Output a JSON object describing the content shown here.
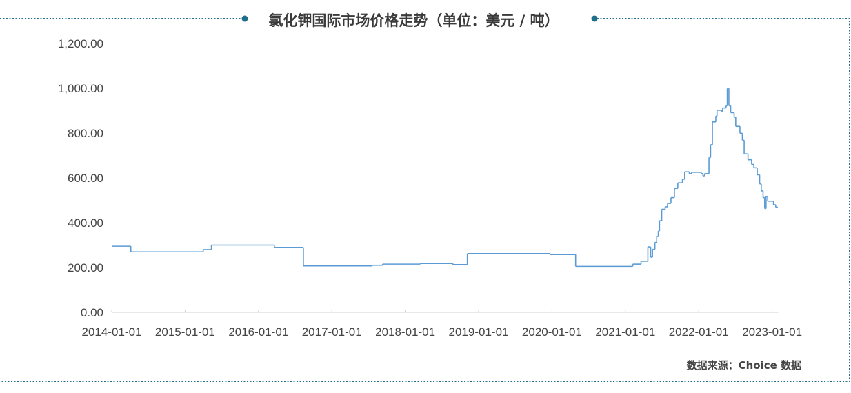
{
  "title": "氯化钾国际市场价格走势（单位：美元 / 吨）",
  "source": "数据来源：Choice 数据",
  "colors": {
    "line": "#5b9bd5",
    "frame": "#1f6f8b",
    "axis": "#d0d0d0",
    "text": "#444444"
  },
  "chart_data": {
    "type": "line",
    "title": "氯化钾国际市场价格走势（单位：美元 / 吨）",
    "xlabel": "",
    "ylabel": "",
    "ylim": [
      0,
      1200
    ],
    "yticks": [
      "0.00",
      "200.00",
      "400.00",
      "600.00",
      "800.00",
      "1,000.00",
      "1,200.00"
    ],
    "ytick_values": [
      0,
      200,
      400,
      600,
      800,
      1000,
      1200
    ],
    "xlim": [
      "2014-01-01",
      "2023-02-01"
    ],
    "xticks": [
      "2014-01-01",
      "2015-01-01",
      "2016-01-01",
      "2017-01-01",
      "2018-01-01",
      "2019-01-01",
      "2020-01-01",
      "2021-01-01",
      "2022-01-01",
      "2023-01-01"
    ],
    "grid": false,
    "step": true,
    "series": [
      {
        "points": [
          [
            "2014-01-01",
            295
          ],
          [
            "2014-04-06",
            270
          ],
          [
            "2015-04-01",
            280
          ],
          [
            "2015-05-12",
            300
          ],
          [
            "2016-03-20",
            290
          ],
          [
            "2016-08-12",
            207
          ],
          [
            "2017-07-20",
            210
          ],
          [
            "2017-09-10",
            215
          ],
          [
            "2018-03-17",
            218
          ],
          [
            "2018-08-26",
            213
          ],
          [
            "2018-11-06",
            262
          ],
          [
            "2019-12-23",
            258
          ],
          [
            "2020-04-28",
            205
          ],
          [
            "2021-02-07",
            215
          ],
          [
            "2021-03-20",
            228
          ],
          [
            "2021-04-23",
            292
          ],
          [
            "2021-05-07",
            246
          ],
          [
            "2021-05-16",
            281
          ],
          [
            "2021-05-28",
            312
          ],
          [
            "2021-06-06",
            338
          ],
          [
            "2021-06-14",
            363
          ],
          [
            "2021-06-20",
            409
          ],
          [
            "2021-07-01",
            460
          ],
          [
            "2021-07-18",
            471
          ],
          [
            "2021-07-30",
            486
          ],
          [
            "2021-08-16",
            512
          ],
          [
            "2021-09-02",
            553
          ],
          [
            "2021-09-19",
            578
          ],
          [
            "2021-10-12",
            594
          ],
          [
            "2021-10-23",
            627
          ],
          [
            "2021-11-15",
            619
          ],
          [
            "2021-11-27",
            625
          ],
          [
            "2022-01-13",
            619
          ],
          [
            "2022-01-22",
            609
          ],
          [
            "2022-01-30",
            619
          ],
          [
            "2022-02-21",
            691
          ],
          [
            "2022-03-01",
            748
          ],
          [
            "2022-03-10",
            850
          ],
          [
            "2022-03-27",
            876
          ],
          [
            "2022-04-02",
            902
          ],
          [
            "2022-04-25",
            897
          ],
          [
            "2022-04-30",
            912
          ],
          [
            "2022-05-17",
            922
          ],
          [
            "2022-05-23",
            999
          ],
          [
            "2022-05-31",
            922
          ],
          [
            "2022-06-09",
            891
          ],
          [
            "2022-06-26",
            871
          ],
          [
            "2022-07-04",
            830
          ],
          [
            "2022-07-25",
            799
          ],
          [
            "2022-08-06",
            768
          ],
          [
            "2022-08-15",
            707
          ],
          [
            "2022-09-03",
            681
          ],
          [
            "2022-09-21",
            660
          ],
          [
            "2022-10-02",
            645
          ],
          [
            "2022-10-19",
            614
          ],
          [
            "2022-10-31",
            573
          ],
          [
            "2022-11-08",
            542
          ],
          [
            "2022-11-17",
            512
          ],
          [
            "2022-11-25",
            463
          ],
          [
            "2022-12-02",
            517
          ],
          [
            "2022-12-10",
            496
          ],
          [
            "2023-01-08",
            480
          ],
          [
            "2023-01-19",
            469
          ]
        ]
      }
    ]
  }
}
